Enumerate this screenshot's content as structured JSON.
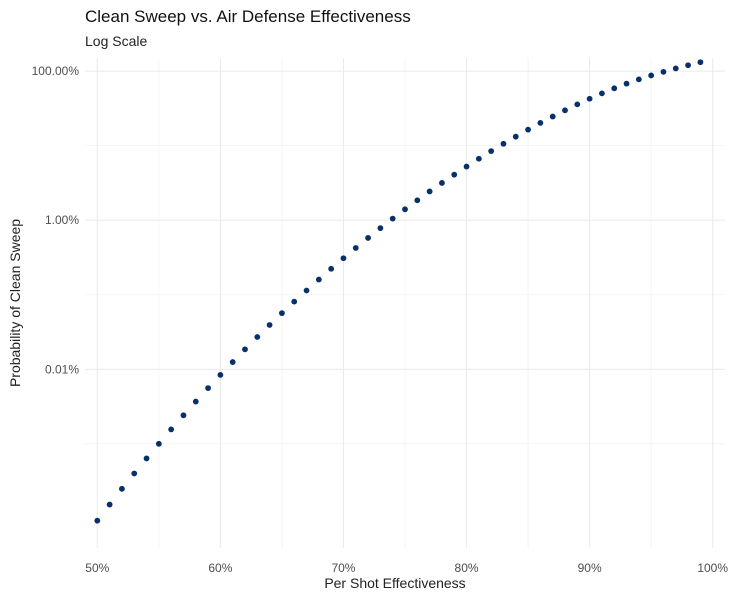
{
  "chart_data": {
    "type": "scatter",
    "title": "Clean Sweep vs. Air Defense Effectiveness",
    "subtitle": "Log Scale",
    "xlabel": "Per Shot Effectiveness",
    "ylabel": "Probability of Clean Sweep",
    "x_ticks": [
      "50%",
      "60%",
      "70%",
      "80%",
      "90%",
      "100%"
    ],
    "y_ticks": [
      "100.00%",
      "1.00%",
      "0.01%"
    ],
    "xlim": [
      0.49,
      1.01
    ],
    "ylim": [
      4e-07,
      1.5
    ],
    "y_scale": "log",
    "grid": true,
    "point_color": "#08306b",
    "series": [
      {
        "x": [
          0.5,
          0.51,
          0.52,
          0.53,
          0.54,
          0.55,
          0.56,
          0.57,
          0.58,
          0.59,
          0.6,
          0.61,
          0.62,
          0.63,
          0.64,
          0.65,
          0.66,
          0.67,
          0.68,
          0.69,
          0.7,
          0.71,
          0.72,
          0.73,
          0.74,
          0.75,
          0.76,
          0.77,
          0.78,
          0.79,
          0.8,
          0.81,
          0.82,
          0.83,
          0.84,
          0.85,
          0.86,
          0.87,
          0.88,
          0.89,
          0.9,
          0.91,
          0.92,
          0.93,
          0.94,
          0.95,
          0.96,
          0.97,
          0.98,
          0.99
        ],
        "y": [
          9.31e-07,
          1.53e-06,
          2.49e-06,
          4e-06,
          6.36e-06,
          1e-05,
          1.56e-05,
          2.41e-05,
          3.69e-05,
          5.59e-05,
          8.4e-05,
          0.000125,
          0.000185,
          0.000271,
          0.000393,
          0.000566,
          0.000808,
          0.00114,
          0.0016,
          0.00223,
          0.00309,
          0.00424,
          0.00578,
          0.00782,
          0.0105,
          0.014,
          0.0185,
          0.0243,
          0.0316,
          0.0408,
          0.0524,
          0.0668,
          0.0845,
          0.106,
          0.132,
          0.164,
          0.202,
          0.246,
          0.298,
          0.358,
          0.426,
          0.503,
          0.588,
          0.679,
          0.775,
          0.875,
          0.978,
          1.088,
          1.2,
          1.316
        ]
      }
    ]
  }
}
